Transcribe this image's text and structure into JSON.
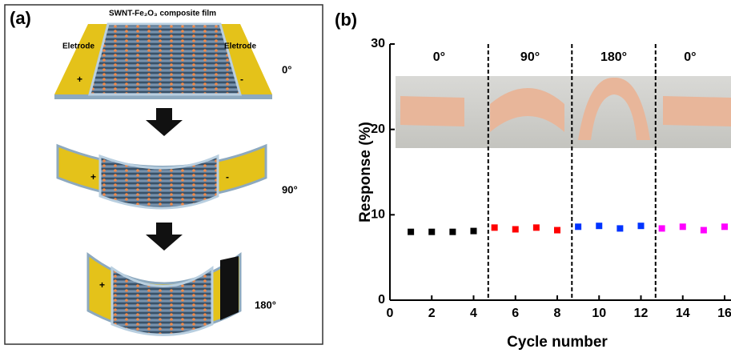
{
  "panel_a": {
    "label": "(a)",
    "film_title": "SWNT-Fe₂O₃ composite film",
    "electrode_left": "Eletrode",
    "electrode_right": "Eletrode",
    "angles": [
      "0°",
      "90°",
      "180°"
    ],
    "plus": "+",
    "minus": "-"
  },
  "chart_data": {
    "type": "scatter",
    "panel_label": "(b)",
    "x_label": "Cycle number",
    "y_label": "Response (%)",
    "xlim": [
      0,
      16
    ],
    "xticks": [
      0,
      2,
      4,
      6,
      8,
      10,
      12,
      14,
      16
    ],
    "ylim": [
      0,
      30
    ],
    "yticks": [
      0,
      10,
      20,
      30
    ],
    "dividers": [
      4.7,
      8.7,
      12.7
    ],
    "section_labels": [
      "0°",
      "90°",
      "180°",
      "0°"
    ],
    "series": [
      {
        "color": "#000000",
        "x": [
          1,
          2,
          3,
          4
        ],
        "values": [
          8.0,
          8.0,
          8.0,
          8.1
        ]
      },
      {
        "color": "#ff0000",
        "x": [
          5,
          6,
          7,
          8
        ],
        "values": [
          8.5,
          8.3,
          8.5,
          8.2
        ]
      },
      {
        "color": "#0033ff",
        "x": [
          9,
          10,
          11,
          12
        ],
        "values": [
          8.6,
          8.7,
          8.4,
          8.7
        ]
      },
      {
        "color": "#ff00ff",
        "x": [
          13,
          14,
          15,
          16
        ],
        "values": [
          8.4,
          8.6,
          8.2,
          8.6
        ]
      }
    ]
  }
}
